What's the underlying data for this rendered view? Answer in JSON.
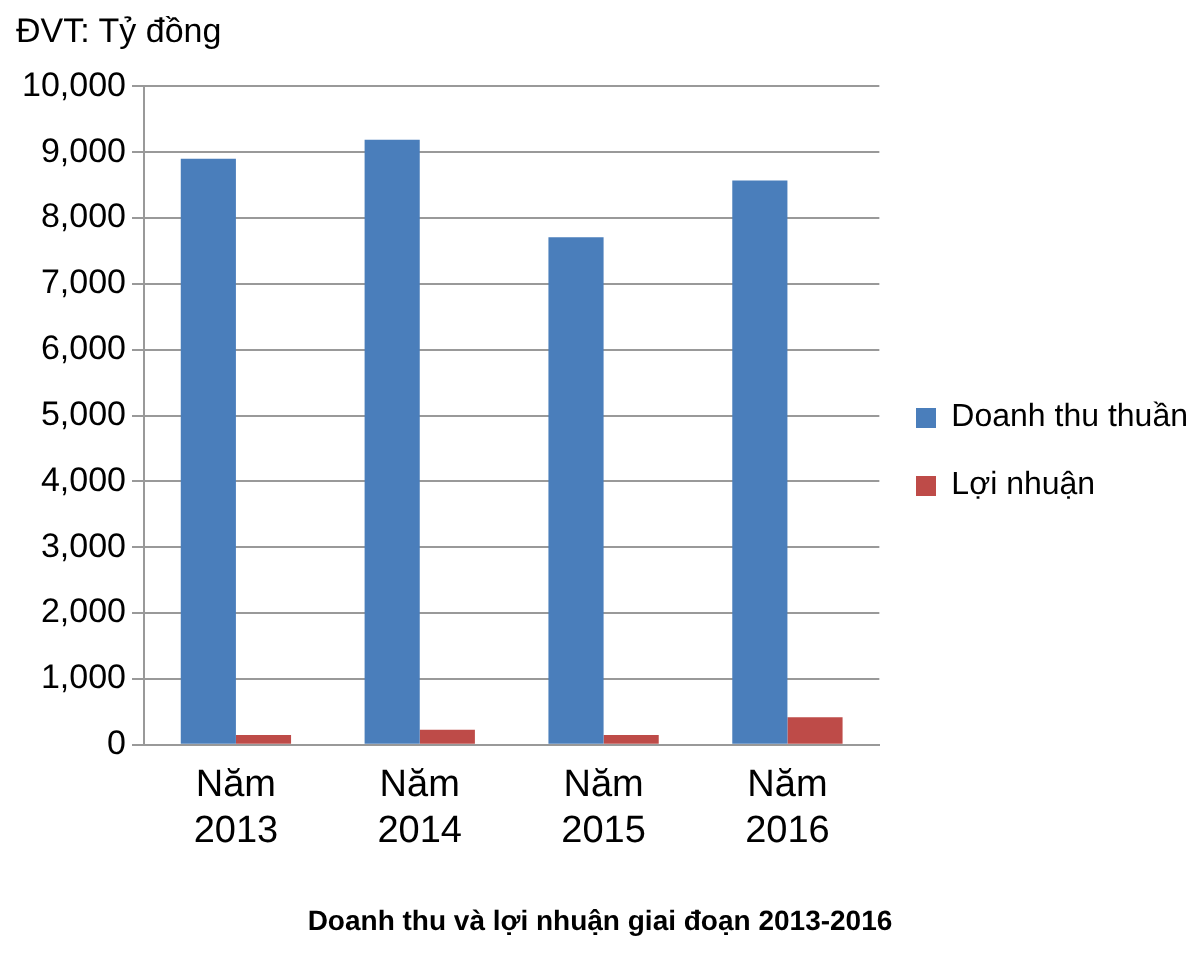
{
  "chart_data": {
    "type": "bar",
    "title": "Doanh thu và lợi nhuận giai đoạn 2013-2016",
    "ylabel": "ĐVT: Tỷ đồng",
    "categories": [
      "Năm 2013",
      "Năm 2014",
      "Năm 2015",
      "Năm 2016"
    ],
    "series": [
      {
        "name": "Doanh thu thuần",
        "color": "#4a7ebb",
        "values": [
          8900,
          9190,
          7710,
          8570
        ]
      },
      {
        "name": "Lợi nhuận",
        "color": "#be4b48",
        "values": [
          150,
          230,
          150,
          420
        ]
      }
    ],
    "ylim": [
      0,
      10000
    ],
    "yticks": [
      0,
      {
        "value": 1000,
        "label": "1,000"
      },
      {
        "value": 2000,
        "label": "2,000"
      },
      {
        "value": 3000,
        "label": "3,000"
      },
      {
        "value": 4000,
        "label": "4,000"
      },
      {
        "value": 5000,
        "label": "5,000"
      },
      {
        "value": 6000,
        "label": "6,000"
      },
      {
        "value": 7000,
        "label": "7,000"
      },
      {
        "value": 8000,
        "label": "8,000"
      },
      {
        "value": 9000,
        "label": "9,000"
      },
      {
        "value": 10000,
        "label": "10,000"
      }
    ],
    "grid": "y",
    "legend": "right"
  }
}
